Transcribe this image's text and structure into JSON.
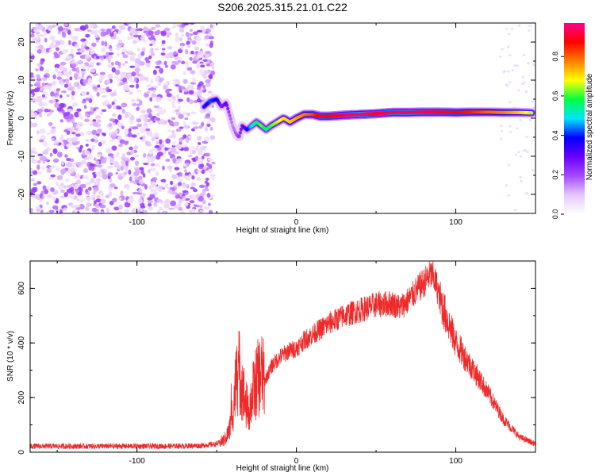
{
  "figure": {
    "title": "S206.2025.315.21.01.C22"
  },
  "chart_data": [
    {
      "type": "heatmap",
      "title": "S206.2025.315.21.01.C22",
      "xlabel": "Height of straight line (km)",
      "ylabel": "Frequency (Hz)",
      "xlim": [
        -167,
        150
      ],
      "ylim": [
        -25,
        25
      ],
      "xticks": [
        -100,
        0,
        100
      ],
      "yticks": [
        -20,
        -10,
        0,
        10,
        20
      ],
      "colorbar": {
        "label": "Normalized spectral amplitude",
        "range": [
          0,
          0.97
        ],
        "ticks": [
          0.0,
          0.2,
          0.4,
          0.6,
          0.8
        ],
        "tick_labels": [
          "0.0",
          "0.2",
          "0.4",
          "0.6",
          "0.8"
        ],
        "colors": [
          "#ffffff",
          "#e6c8ff",
          "#a54bff",
          "#6a00ff",
          "#0000ff",
          "#00e5ff",
          "#00ff40",
          "#ffff00",
          "#ff7f00",
          "#ff0000",
          "#ff0090"
        ]
      },
      "noise_region_x": [
        -167,
        -52
      ],
      "ridge": {
        "x": [
          -58,
          -54,
          -50,
          -47,
          -44,
          -42,
          -40,
          -38,
          -36,
          -34,
          -31,
          -28,
          -25,
          -22,
          -19,
          -16,
          -12,
          -8,
          -4,
          0,
          5,
          10,
          15,
          20,
          30,
          40,
          50,
          60,
          70,
          80,
          90,
          100,
          110,
          120,
          130,
          140,
          148
        ],
        "freq": [
          3,
          4.5,
          5,
          3,
          4,
          1,
          -2,
          -4,
          -5,
          -2,
          -3,
          -2,
          -1,
          -2,
          -3,
          -2,
          -1,
          0,
          -1,
          0,
          1,
          1,
          0.5,
          0.5,
          0.8,
          1,
          1.2,
          1.5,
          1.5,
          1.6,
          1.6,
          1.5,
          1.6,
          1.6,
          1.5,
          1.5,
          1.4
        ],
        "amplitude": [
          0.35,
          0.42,
          0.38,
          0.25,
          0.3,
          0.2,
          0.15,
          0.18,
          0.22,
          0.28,
          0.35,
          0.5,
          0.55,
          0.62,
          0.55,
          0.6,
          0.65,
          0.7,
          0.72,
          0.75,
          0.78,
          0.82,
          0.9,
          0.88,
          0.92,
          0.95,
          0.9,
          0.92,
          0.93,
          0.92,
          0.9,
          0.88,
          0.85,
          0.8,
          0.78,
          0.72,
          0.65
        ]
      }
    },
    {
      "type": "line",
      "xlabel": "Height of straight line (km)",
      "ylabel": "SNR (10 * v/v)",
      "xlim": [
        -167,
        150
      ],
      "ylim": [
        0,
        700
      ],
      "xticks": [
        -100,
        0,
        100
      ],
      "yticks": [
        0,
        200,
        400,
        600
      ],
      "series": [
        {
          "name": "SNR",
          "color": "#ee2b2b",
          "x": [
            -167,
            -120,
            -80,
            -60,
            -50,
            -45,
            -42,
            -40,
            -38,
            -36,
            -34,
            -32,
            -30,
            -28,
            -25,
            -22,
            -20,
            -15,
            -10,
            -5,
            0,
            5,
            10,
            20,
            30,
            40,
            50,
            60,
            65,
            70,
            75,
            80,
            84,
            86,
            88,
            90,
            95,
            100,
            110,
            120,
            130,
            140,
            150
          ],
          "y": [
            22,
            22,
            22,
            24,
            30,
            45,
            80,
            150,
            250,
            300,
            250,
            180,
            150,
            200,
            260,
            290,
            260,
            320,
            350,
            370,
            380,
            410,
            430,
            470,
            500,
            520,
            540,
            545,
            530,
            555,
            590,
            620,
            650,
            640,
            610,
            560,
            480,
            400,
            310,
            220,
            120,
            55,
            30
          ]
        }
      ]
    }
  ]
}
